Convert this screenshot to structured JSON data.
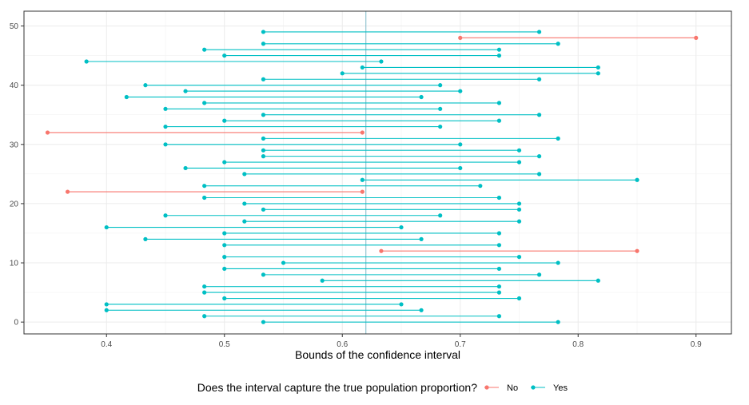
{
  "chart_data": {
    "type": "dumbbell",
    "title": "",
    "xlabel": "Bounds of the confidence interval",
    "ylabel": "",
    "xlim": [
      0.33,
      0.93
    ],
    "ylim": [
      -2,
      52.5
    ],
    "x_ticks": [
      0.4,
      0.5,
      0.6,
      0.7,
      0.8,
      0.9
    ],
    "x_tick_labels": [
      "0.4",
      "0.5",
      "0.6",
      "0.7",
      "0.8",
      "0.9"
    ],
    "y_ticks": [
      0,
      10,
      20,
      30,
      40,
      50
    ],
    "y_tick_labels": [
      "0",
      "10",
      "20",
      "30",
      "40",
      "50"
    ],
    "reference_line": 0.62,
    "grid": true,
    "legend": {
      "title": "Does the interval capture the true population proportion?",
      "position": "bottom",
      "entries": [
        {
          "key": "No",
          "label": "No",
          "color": "#F8766D"
        },
        {
          "key": "Yes",
          "label": "Yes",
          "color": "#00BFC4"
        }
      ]
    },
    "intervals": [
      {
        "id": 0,
        "lower": 0.533,
        "upper": 0.783,
        "captured": "Yes"
      },
      {
        "id": 1,
        "lower": 0.483,
        "upper": 0.733,
        "captured": "Yes"
      },
      {
        "id": 2,
        "lower": 0.4,
        "upper": 0.667,
        "captured": "Yes"
      },
      {
        "id": 3,
        "lower": 0.4,
        "upper": 0.65,
        "captured": "Yes"
      },
      {
        "id": 4,
        "lower": 0.5,
        "upper": 0.75,
        "captured": "Yes"
      },
      {
        "id": 5,
        "lower": 0.483,
        "upper": 0.733,
        "captured": "Yes"
      },
      {
        "id": 6,
        "lower": 0.483,
        "upper": 0.733,
        "captured": "Yes"
      },
      {
        "id": 7,
        "lower": 0.583,
        "upper": 0.817,
        "captured": "Yes"
      },
      {
        "id": 8,
        "lower": 0.533,
        "upper": 0.767,
        "captured": "Yes"
      },
      {
        "id": 9,
        "lower": 0.5,
        "upper": 0.733,
        "captured": "Yes"
      },
      {
        "id": 10,
        "lower": 0.55,
        "upper": 0.783,
        "captured": "Yes"
      },
      {
        "id": 11,
        "lower": 0.5,
        "upper": 0.75,
        "captured": "Yes"
      },
      {
        "id": 12,
        "lower": 0.633,
        "upper": 0.85,
        "captured": "No"
      },
      {
        "id": 13,
        "lower": 0.5,
        "upper": 0.733,
        "captured": "Yes"
      },
      {
        "id": 14,
        "lower": 0.433,
        "upper": 0.667,
        "captured": "Yes"
      },
      {
        "id": 15,
        "lower": 0.5,
        "upper": 0.733,
        "captured": "Yes"
      },
      {
        "id": 16,
        "lower": 0.4,
        "upper": 0.65,
        "captured": "Yes"
      },
      {
        "id": 17,
        "lower": 0.517,
        "upper": 0.75,
        "captured": "Yes"
      },
      {
        "id": 18,
        "lower": 0.45,
        "upper": 0.683,
        "captured": "Yes"
      },
      {
        "id": 19,
        "lower": 0.533,
        "upper": 0.75,
        "captured": "Yes"
      },
      {
        "id": 20,
        "lower": 0.517,
        "upper": 0.75,
        "captured": "Yes"
      },
      {
        "id": 21,
        "lower": 0.483,
        "upper": 0.733,
        "captured": "Yes"
      },
      {
        "id": 22,
        "lower": 0.367,
        "upper": 0.617,
        "captured": "No"
      },
      {
        "id": 23,
        "lower": 0.483,
        "upper": 0.717,
        "captured": "Yes"
      },
      {
        "id": 24,
        "lower": 0.617,
        "upper": 0.85,
        "captured": "Yes"
      },
      {
        "id": 25,
        "lower": 0.517,
        "upper": 0.767,
        "captured": "Yes"
      },
      {
        "id": 26,
        "lower": 0.467,
        "upper": 0.7,
        "captured": "Yes"
      },
      {
        "id": 27,
        "lower": 0.5,
        "upper": 0.75,
        "captured": "Yes"
      },
      {
        "id": 28,
        "lower": 0.533,
        "upper": 0.767,
        "captured": "Yes"
      },
      {
        "id": 29,
        "lower": 0.533,
        "upper": 0.75,
        "captured": "Yes"
      },
      {
        "id": 30,
        "lower": 0.45,
        "upper": 0.7,
        "captured": "Yes"
      },
      {
        "id": 31,
        "lower": 0.533,
        "upper": 0.783,
        "captured": "Yes"
      },
      {
        "id": 32,
        "lower": 0.35,
        "upper": 0.617,
        "captured": "No"
      },
      {
        "id": 33,
        "lower": 0.45,
        "upper": 0.683,
        "captured": "Yes"
      },
      {
        "id": 34,
        "lower": 0.5,
        "upper": 0.733,
        "captured": "Yes"
      },
      {
        "id": 35,
        "lower": 0.533,
        "upper": 0.767,
        "captured": "Yes"
      },
      {
        "id": 36,
        "lower": 0.45,
        "upper": 0.683,
        "captured": "Yes"
      },
      {
        "id": 37,
        "lower": 0.483,
        "upper": 0.733,
        "captured": "Yes"
      },
      {
        "id": 38,
        "lower": 0.417,
        "upper": 0.667,
        "captured": "Yes"
      },
      {
        "id": 39,
        "lower": 0.467,
        "upper": 0.7,
        "captured": "Yes"
      },
      {
        "id": 40,
        "lower": 0.433,
        "upper": 0.683,
        "captured": "Yes"
      },
      {
        "id": 41,
        "lower": 0.533,
        "upper": 0.767,
        "captured": "Yes"
      },
      {
        "id": 42,
        "lower": 0.6,
        "upper": 0.817,
        "captured": "Yes"
      },
      {
        "id": 43,
        "lower": 0.617,
        "upper": 0.817,
        "captured": "Yes"
      },
      {
        "id": 44,
        "lower": 0.383,
        "upper": 0.633,
        "captured": "Yes"
      },
      {
        "id": 45,
        "lower": 0.5,
        "upper": 0.733,
        "captured": "Yes"
      },
      {
        "id": 46,
        "lower": 0.483,
        "upper": 0.733,
        "captured": "Yes"
      },
      {
        "id": 47,
        "lower": 0.533,
        "upper": 0.783,
        "captured": "Yes"
      },
      {
        "id": 48,
        "lower": 0.7,
        "upper": 0.9,
        "captured": "No"
      },
      {
        "id": 49,
        "lower": 0.533,
        "upper": 0.767,
        "captured": "Yes"
      }
    ]
  }
}
